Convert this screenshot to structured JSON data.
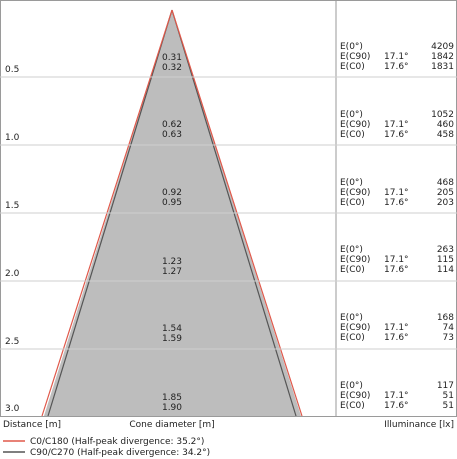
{
  "bands": [
    {
      "distance": "0.5",
      "d_c0": "0.31",
      "d_c90": "0.32",
      "e_labels": [
        "E(0°)",
        "E(C90)",
        "E(C0)"
      ],
      "angles": [
        "",
        "17.1°",
        "17.6°"
      ],
      "lux": [
        "4209",
        "1842",
        "1831"
      ]
    },
    {
      "distance": "1.0",
      "d_c0": "0.62",
      "d_c90": "0.63",
      "e_labels": [
        "E(0°)",
        "E(C90)",
        "E(C0)"
      ],
      "angles": [
        "",
        "17.1°",
        "17.6°"
      ],
      "lux": [
        "1052",
        "460",
        "458"
      ]
    },
    {
      "distance": "1.5",
      "d_c0": "0.92",
      "d_c90": "0.95",
      "e_labels": [
        "E(0°)",
        "E(C90)",
        "E(C0)"
      ],
      "angles": [
        "",
        "17.1°",
        "17.6°"
      ],
      "lux": [
        "468",
        "205",
        "203"
      ]
    },
    {
      "distance": "2.0",
      "d_c0": "1.23",
      "d_c90": "1.27",
      "e_labels": [
        "E(0°)",
        "E(C90)",
        "E(C0)"
      ],
      "angles": [
        "",
        "17.1°",
        "17.6°"
      ],
      "lux": [
        "263",
        "115",
        "114"
      ]
    },
    {
      "distance": "2.5",
      "d_c0": "1.54",
      "d_c90": "1.59",
      "e_labels": [
        "E(0°)",
        "E(C90)",
        "E(C0)"
      ],
      "angles": [
        "",
        "17.1°",
        "17.6°"
      ],
      "lux": [
        "168",
        "74",
        "73"
      ]
    },
    {
      "distance": "3.0",
      "d_c0": "1.85",
      "d_c90": "1.90",
      "e_labels": [
        "E(0°)",
        "E(C90)",
        "E(C0)"
      ],
      "angles": [
        "",
        "17.1°",
        "17.6°"
      ],
      "lux": [
        "117",
        "51",
        "51"
      ]
    }
  ],
  "footer": {
    "distance_label": "Distance [m]",
    "cone_label": "Cone diameter [m]",
    "illuminance_label": "Illuminance [lx]"
  },
  "legend": [
    {
      "label": "C0/C180 (Half-peak divergence: 35.2°)",
      "color": "#e0584a"
    },
    {
      "label": "C90/C270 (Half-peak divergence: 34.2°)",
      "color": "#555555"
    }
  ],
  "colors": {
    "cone_fill": "#bdbdbd",
    "grid": "#cfcfcf",
    "border": "#9a9a9a"
  }
}
